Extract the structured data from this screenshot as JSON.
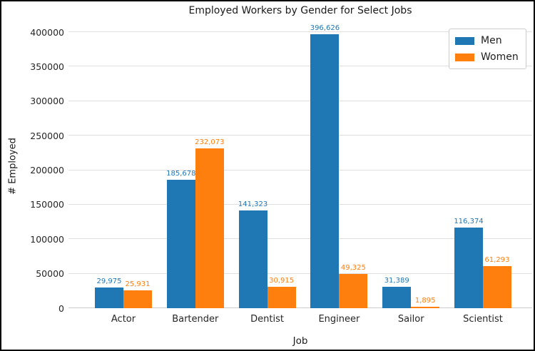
{
  "chart_data": {
    "type": "bar",
    "title": "Employed Workers by Gender for Select Jobs",
    "xlabel": "Job",
    "ylabel": "# Employed",
    "categories": [
      "Actor",
      "Bartender",
      "Dentist",
      "Engineer",
      "Sailor",
      "Scientist"
    ],
    "series": [
      {
        "name": "Men",
        "color": "#1f77b4",
        "values": [
          29975,
          185678,
          141323,
          396626,
          31389,
          116374
        ]
      },
      {
        "name": "Women",
        "color": "#ff7f0e",
        "values": [
          25931,
          232073,
          30915,
          49325,
          1895,
          61293
        ]
      }
    ],
    "bar_value_labels": [
      [
        "29,975",
        "185,678",
        "141,323",
        "396,626",
        "31,389",
        "116,374"
      ],
      [
        "25,931",
        "232,073",
        "30,915",
        "49,325",
        "1,895",
        "61,293"
      ]
    ],
    "ylim": [
      0,
      400000
    ],
    "yticks": [
      0,
      50000,
      100000,
      150000,
      200000,
      250000,
      300000,
      350000,
      400000
    ],
    "grid": true,
    "legend_position": "upper right",
    "colors": {
      "grid": "#e0e0e0",
      "axis_text": "#262626",
      "frame_border": "#000000"
    }
  }
}
